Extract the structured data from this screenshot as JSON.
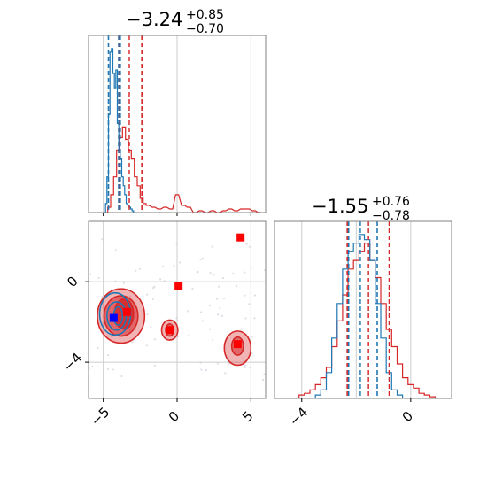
{
  "colors": {
    "red": "#d62728",
    "blue": "#1f77b4",
    "grid": "#cccccc",
    "frame": "#808080"
  },
  "chart_data": [
    {
      "panel": "marginal-top-left",
      "type": "histogram",
      "title": {
        "value": "−3.24",
        "plus": "+0.85",
        "minus": "−0.70"
      },
      "xlim": [
        -6.0,
        6.0
      ],
      "grid_x": [
        -5,
        0,
        5
      ],
      "series": [
        {
          "color": "red",
          "median": -3.24,
          "quantiles": [
            -3.94,
            -2.39
          ],
          "x": [
            -4.8,
            -4.6,
            -4.4,
            -4.2,
            -4.0,
            -3.8,
            -3.6,
            -3.4,
            -3.2,
            -3.0,
            -2.8,
            -2.6,
            -2.4,
            -2.2,
            -2.0,
            -1.6,
            -1.2,
            -0.8,
            -0.4,
            0.0,
            0.4,
            0.8,
            1.2,
            1.6,
            2.0,
            2.4,
            2.8,
            3.2,
            3.6,
            4.0,
            4.4,
            4.8,
            5.2,
            5.6
          ],
          "values": [
            0.0,
            0.03,
            0.1,
            0.2,
            0.35,
            0.42,
            0.48,
            0.41,
            0.35,
            0.3,
            0.2,
            0.15,
            0.08,
            0.05,
            0.04,
            0.03,
            0.02,
            0.03,
            0.02,
            0.1,
            0.04,
            0.03,
            0.0,
            0.01,
            0.0,
            0.01,
            0.0,
            0.01,
            0.02,
            0.01,
            0.02,
            0.02,
            0.01,
            0.0
          ]
        },
        {
          "color": "blue",
          "median": -3.96,
          "quantiles": [
            -4.65,
            -3.85
          ],
          "x": [
            -4.9,
            -4.8,
            -4.7,
            -4.6,
            -4.5,
            -4.4,
            -4.3,
            -4.2,
            -4.1,
            -4.0,
            -3.9,
            -3.8,
            -3.7,
            -3.6,
            -3.5,
            -3.4,
            -3.3,
            -3.2,
            -3.1,
            -3.0,
            -2.9
          ],
          "values": [
            0.0,
            0.05,
            0.2,
            0.55,
            0.9,
            0.92,
            0.78,
            0.7,
            0.8,
            0.5,
            0.35,
            0.3,
            0.2,
            0.15,
            0.1,
            0.05,
            0.04,
            0.03,
            0.02,
            0.01,
            0.0
          ]
        }
      ]
    },
    {
      "panel": "marginal-bottom-right",
      "type": "histogram",
      "title": {
        "value": "−1.55",
        "plus": "+0.76",
        "minus": "−0.78"
      },
      "xlim": [
        -5.0,
        1.5
      ],
      "xticks": [
        -4,
        0
      ],
      "xtick_labels": [
        "−4",
        "0"
      ],
      "grid_x": [
        -4,
        -2,
        0
      ],
      "series": [
        {
          "color": "red",
          "median": -1.55,
          "quantiles": [
            -2.33,
            -0.79
          ],
          "x": [
            -4.0,
            -3.8,
            -3.6,
            -3.4,
            -3.2,
            -3.0,
            -2.8,
            -2.6,
            -2.4,
            -2.2,
            -2.0,
            -1.8,
            -1.6,
            -1.4,
            -1.2,
            -1.0,
            -0.8,
            -0.6,
            -0.4,
            -0.2,
            0.0,
            0.2,
            0.4,
            0.6,
            0.8
          ],
          "values": [
            0.02,
            0.03,
            0.05,
            0.08,
            0.12,
            0.18,
            0.3,
            0.45,
            0.6,
            0.75,
            0.8,
            0.85,
            0.9,
            0.8,
            0.7,
            0.55,
            0.4,
            0.3,
            0.2,
            0.12,
            0.08,
            0.06,
            0.03,
            0.02,
            0.01
          ]
        },
        {
          "color": "blue",
          "median": -1.85,
          "quantiles": [
            -2.28,
            -1.23
          ],
          "x": [
            -3.4,
            -3.2,
            -3.0,
            -2.8,
            -2.6,
            -2.4,
            -2.2,
            -2.0,
            -1.8,
            -1.6,
            -1.4,
            -1.2,
            -1.0,
            -0.8,
            -0.6,
            -0.4
          ],
          "values": [
            0.02,
            0.05,
            0.15,
            0.35,
            0.55,
            0.75,
            0.85,
            0.9,
            0.95,
            0.92,
            0.8,
            0.55,
            0.35,
            0.15,
            0.05,
            0.02
          ]
        }
      ]
    },
    {
      "panel": "joint-2d",
      "type": "scatter",
      "xlim": [
        -6.0,
        6.0
      ],
      "ylim": [
        -5.8,
        3.0
      ],
      "xticks": [
        -5,
        0,
        5
      ],
      "xtick_labels": [
        "−5",
        "0",
        "5"
      ],
      "yticks": [
        0,
        -4
      ],
      "ytick_labels": [
        "0",
        "−4"
      ],
      "grid_x": [
        -5,
        0,
        5
      ],
      "grid_y": [
        0,
        -4
      ],
      "red_markers": [
        {
          "x": 4.3,
          "y": 2.2
        },
        {
          "x": 0.1,
          "y": -0.2
        },
        {
          "x": -3.4,
          "y": -1.5
        },
        {
          "x": -0.5,
          "y": -2.4
        },
        {
          "x": 4.1,
          "y": -3.1
        }
      ],
      "blue_markers": [
        {
          "x": -4.3,
          "y": -1.8
        }
      ],
      "red_contours": [
        {
          "cx": -3.8,
          "cy": -1.7,
          "rx": 1.6,
          "ry": 1.35,
          "level": "outer"
        },
        {
          "cx": -3.8,
          "cy": -1.7,
          "rx": 1.15,
          "ry": 1.0,
          "level": "middle"
        },
        {
          "cx": -3.6,
          "cy": -1.6,
          "rx": 0.65,
          "ry": 0.75,
          "level": "inner"
        },
        {
          "cx": -0.5,
          "cy": -2.4,
          "rx": 0.55,
          "ry": 0.5,
          "level": "outer"
        },
        {
          "cx": -0.5,
          "cy": -2.4,
          "rx": 0.28,
          "ry": 0.3,
          "level": "middle"
        },
        {
          "cx": 4.1,
          "cy": -3.3,
          "rx": 0.9,
          "ry": 0.85,
          "level": "outer"
        },
        {
          "cx": 4.1,
          "cy": -3.2,
          "rx": 0.4,
          "ry": 0.45,
          "level": "middle"
        }
      ],
      "blue_contours": [
        {
          "cx": -4.2,
          "cy": -1.6,
          "rx": 1.05,
          "ry": 1.05
        },
        {
          "cx": -4.1,
          "cy": -1.7,
          "rx": 0.65,
          "ry": 0.7
        },
        {
          "cx": -4.0,
          "cy": -1.7,
          "rx": 0.3,
          "ry": 0.45
        }
      ]
    }
  ]
}
